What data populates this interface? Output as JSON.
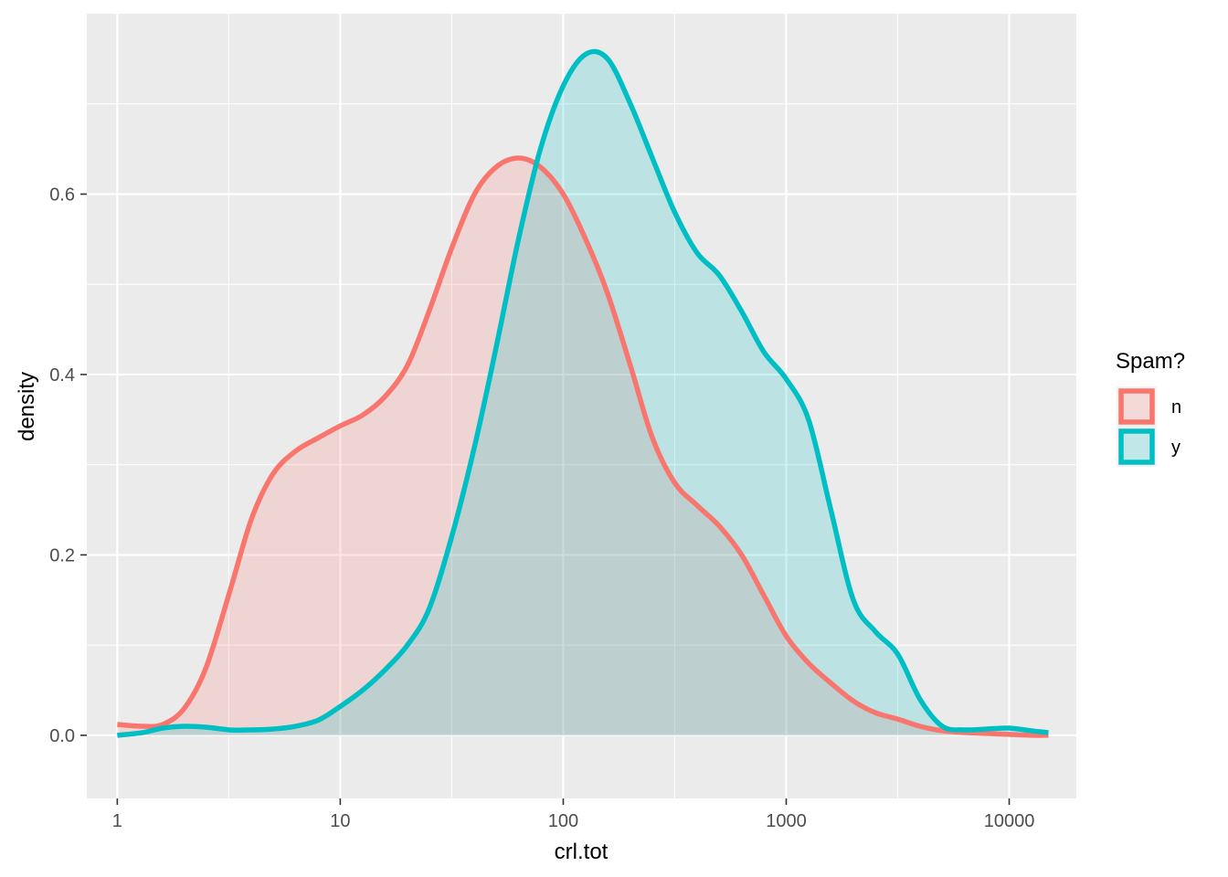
{
  "chart_data": {
    "type": "area",
    "xlabel": "crl.tot",
    "ylabel": "density",
    "x_scale": "log10",
    "xlim": [
      0.73,
      20000
    ],
    "ylim": [
      -0.07,
      0.8
    ],
    "x_ticks": [
      1,
      10,
      100,
      1000,
      10000
    ],
    "x_tick_labels": [
      "1",
      "10",
      "100",
      "1000",
      "10000"
    ],
    "x_minor_ticks": [
      3.16,
      31.6,
      316,
      3162
    ],
    "y_ticks": [
      0.0,
      0.2,
      0.4,
      0.6
    ],
    "y_tick_labels": [
      "0.0",
      "0.2",
      "0.4",
      "0.6"
    ],
    "y_minor_ticks": [
      0.1,
      0.3,
      0.5,
      0.7
    ],
    "grid": true,
    "legend": {
      "title": "Spam?",
      "position": "right"
    },
    "series": [
      {
        "name": "n",
        "color": "#F8766D",
        "fill_opacity": 0.2,
        "points": [
          [
            1,
            0.012
          ],
          [
            1.3,
            0.01
          ],
          [
            1.6,
            0.012
          ],
          [
            2.0,
            0.03
          ],
          [
            2.5,
            0.075
          ],
          [
            3.2,
            0.16
          ],
          [
            4.0,
            0.24
          ],
          [
            5.0,
            0.29
          ],
          [
            6.3,
            0.315
          ],
          [
            8.0,
            0.33
          ],
          [
            10,
            0.343
          ],
          [
            12.6,
            0.355
          ],
          [
            15.8,
            0.375
          ],
          [
            20,
            0.41
          ],
          [
            25,
            0.47
          ],
          [
            31.6,
            0.54
          ],
          [
            40,
            0.6
          ],
          [
            50,
            0.63
          ],
          [
            63,
            0.64
          ],
          [
            79,
            0.63
          ],
          [
            100,
            0.6
          ],
          [
            126,
            0.55
          ],
          [
            158,
            0.49
          ],
          [
            200,
            0.41
          ],
          [
            251,
            0.33
          ],
          [
            316,
            0.28
          ],
          [
            398,
            0.255
          ],
          [
            501,
            0.232
          ],
          [
            631,
            0.2
          ],
          [
            794,
            0.155
          ],
          [
            1000,
            0.11
          ],
          [
            1259,
            0.08
          ],
          [
            1585,
            0.058
          ],
          [
            2000,
            0.038
          ],
          [
            2512,
            0.025
          ],
          [
            3162,
            0.018
          ],
          [
            3981,
            0.01
          ],
          [
            5012,
            0.005
          ],
          [
            6310,
            0.003
          ],
          [
            7943,
            0.002
          ],
          [
            10000,
            0.001
          ],
          [
            12589,
            0.0
          ],
          [
            15000,
            0.0
          ]
        ]
      },
      {
        "name": "y",
        "color": "#00BFC4",
        "fill_opacity": 0.2,
        "points": [
          [
            1,
            0.0
          ],
          [
            1.3,
            0.003
          ],
          [
            1.6,
            0.008
          ],
          [
            2.0,
            0.01
          ],
          [
            2.5,
            0.009
          ],
          [
            3.2,
            0.006
          ],
          [
            4.0,
            0.006
          ],
          [
            5.0,
            0.007
          ],
          [
            6.3,
            0.01
          ],
          [
            8.0,
            0.017
          ],
          [
            10,
            0.032
          ],
          [
            12.6,
            0.05
          ],
          [
            15.8,
            0.072
          ],
          [
            20,
            0.1
          ],
          [
            25,
            0.14
          ],
          [
            31.6,
            0.22
          ],
          [
            40,
            0.32
          ],
          [
            50,
            0.43
          ],
          [
            63,
            0.55
          ],
          [
            79,
            0.65
          ],
          [
            100,
            0.72
          ],
          [
            126,
            0.755
          ],
          [
            158,
            0.75
          ],
          [
            200,
            0.7
          ],
          [
            251,
            0.64
          ],
          [
            316,
            0.58
          ],
          [
            398,
            0.535
          ],
          [
            501,
            0.51
          ],
          [
            631,
            0.47
          ],
          [
            794,
            0.425
          ],
          [
            1000,
            0.395
          ],
          [
            1259,
            0.35
          ],
          [
            1585,
            0.25
          ],
          [
            2000,
            0.15
          ],
          [
            2512,
            0.115
          ],
          [
            3162,
            0.09
          ],
          [
            3981,
            0.04
          ],
          [
            5012,
            0.01
          ],
          [
            6310,
            0.006
          ],
          [
            7943,
            0.007
          ],
          [
            10000,
            0.008
          ],
          [
            12589,
            0.005
          ],
          [
            15000,
            0.003
          ]
        ]
      }
    ]
  }
}
